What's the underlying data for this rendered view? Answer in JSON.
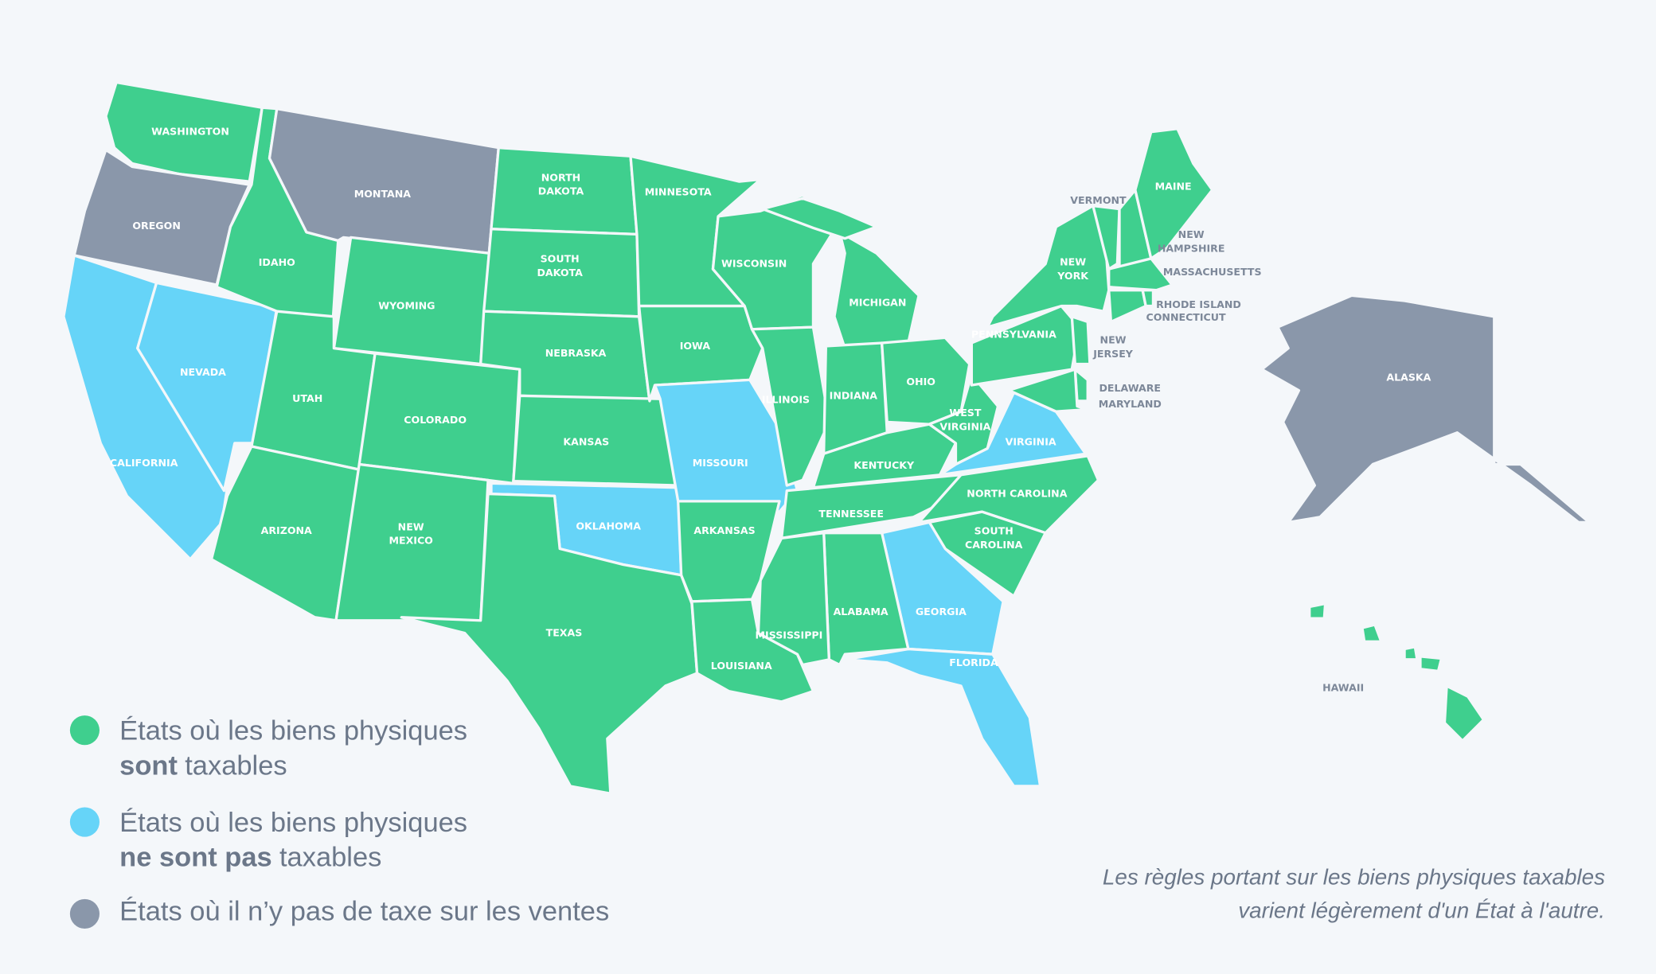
{
  "map": {
    "states": [
      {
        "label": [
          "WASHINGTON"
        ],
        "color": "#3fcf8e"
      },
      {
        "label": [
          "OREGON"
        ],
        "color": "#8a97aa"
      },
      {
        "label": [
          "CALIFORNIA"
        ],
        "color": "#66d4f8"
      },
      {
        "label": [
          "NEVADA"
        ],
        "color": "#66d4f8"
      },
      {
        "label": [
          "IDAHO"
        ],
        "color": "#3fcf8e"
      },
      {
        "label": [
          "MONTANA"
        ],
        "color": "#8a97aa"
      },
      {
        "label": [
          "WYOMING"
        ],
        "color": "#3fcf8e"
      },
      {
        "label": [
          "UTAH"
        ],
        "color": "#3fcf8e"
      },
      {
        "label": [
          "ARIZONA"
        ],
        "color": "#3fcf8e"
      },
      {
        "label": [
          "COLORADO"
        ],
        "color": "#3fcf8e"
      },
      {
        "label": [
          "NEW",
          "MEXICO"
        ],
        "color": "#3fcf8e"
      },
      {
        "label": [
          "NORTH",
          "DAKOTA"
        ],
        "color": "#3fcf8e"
      },
      {
        "label": [
          "SOUTH",
          "DAKOTA"
        ],
        "color": "#3fcf8e"
      },
      {
        "label": [
          "NEBRASKA"
        ],
        "color": "#3fcf8e"
      },
      {
        "label": [
          "KANSAS"
        ],
        "color": "#3fcf8e"
      },
      {
        "label": [
          "OKLAHOMA"
        ],
        "color": "#66d4f8"
      },
      {
        "label": [
          "TEXAS"
        ],
        "color": "#3fcf8e"
      },
      {
        "label": [
          "MINNESOTA"
        ],
        "color": "#3fcf8e"
      },
      {
        "label": [
          "IOWA"
        ],
        "color": "#3fcf8e"
      },
      {
        "label": [
          "MISSOURI"
        ],
        "color": "#66d4f8"
      },
      {
        "label": [
          "ARKANSAS"
        ],
        "color": "#3fcf8e"
      },
      {
        "label": [
          "LOUISIANA"
        ],
        "color": "#3fcf8e"
      },
      {
        "label": [
          "WISCONSIN"
        ],
        "color": "#3fcf8e"
      },
      {
        "label": [
          "ILLINOIS"
        ],
        "color": "#3fcf8e"
      },
      {
        "label": [
          "MICHIGAN"
        ],
        "color": "#3fcf8e"
      },
      {
        "label": [
          "INDIANA"
        ],
        "color": "#3fcf8e"
      },
      {
        "label": [
          "OHIO"
        ],
        "color": "#3fcf8e"
      },
      {
        "label": [
          "KENTUCKY"
        ],
        "color": "#3fcf8e"
      },
      {
        "label": [
          "TENNESSEE"
        ],
        "color": "#3fcf8e"
      },
      {
        "label": [
          "WEST",
          "VIRGINIA"
        ],
        "color": "#3fcf8e"
      },
      {
        "label": [
          "VIRGINIA"
        ],
        "color": "#66d4f8"
      },
      {
        "label": [
          "NORTH CAROLINA"
        ],
        "color": "#3fcf8e"
      },
      {
        "label": [
          "SOUTH",
          "CAROLINA"
        ],
        "color": "#3fcf8e"
      },
      {
        "label": [
          "GEORGIA"
        ],
        "color": "#66d4f8"
      },
      {
        "label": [
          "FLORIDA"
        ],
        "color": "#66d4f8"
      },
      {
        "label": [
          "ALABAMA"
        ],
        "color": "#3fcf8e"
      },
      {
        "label": [
          "MISSISSIPPI"
        ],
        "color": "#3fcf8e"
      },
      {
        "label": [
          "PENNSYLVANIA"
        ],
        "color": "#3fcf8e"
      },
      {
        "label": [
          "NEW",
          "YORK"
        ],
        "color": "#3fcf8e"
      },
      {
        "label": [
          "VERMONT"
        ],
        "color": "#3fcf8e"
      },
      {
        "label": [
          "NEW",
          "HAMPSHIRE"
        ],
        "color": "#3fcf8e"
      },
      {
        "label": [
          "MAINE"
        ],
        "color": "#3fcf8e"
      },
      {
        "label": [
          "MASSACHUSETTS"
        ],
        "color": "#3fcf8e"
      },
      {
        "label": [
          "CONNECTICUT"
        ],
        "color": "#3fcf8e"
      },
      {
        "label": [
          "RHODE ISLAND"
        ],
        "color": "#3fcf8e"
      },
      {
        "label": [
          "NEW",
          "JERSEY"
        ],
        "color": "#3fcf8e"
      },
      {
        "label": [
          "DELAWARE"
        ],
        "color": "#3fcf8e"
      },
      {
        "label": [
          "MARYLAND"
        ],
        "color": "#3fcf8e"
      },
      {
        "label": [
          "ALASKA"
        ],
        "color": "#8a97aa"
      },
      {
        "label": [
          "HAWAII"
        ],
        "color": "#3fcf8e"
      }
    ],
    "legend": [
      {
        "color": "#3fcf8e",
        "text": "États où les biens physiques",
        "bold": "sont",
        "rest": "taxables"
      },
      {
        "color": "#66d4f8",
        "text": "États où les biens physiques",
        "bold": "ne sont pas",
        "rest": "taxables"
      },
      {
        "color": "#8a97aa",
        "text": "États où il n’y pas de taxe sur les ventes"
      }
    ],
    "note": [
      "Les règles portant sur les biens physiques taxables",
      "varient légèrement d'un État à l'autre."
    ]
  }
}
